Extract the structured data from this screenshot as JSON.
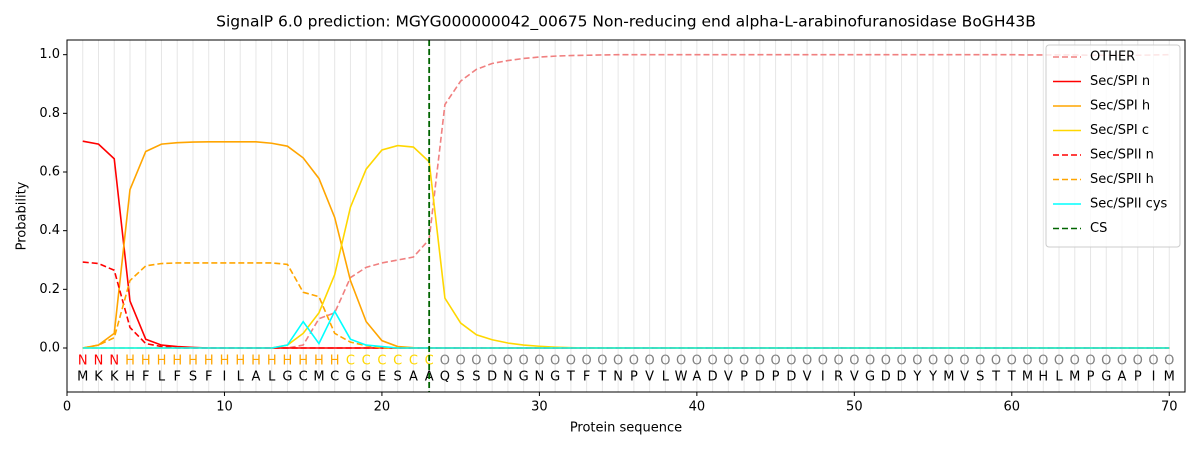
{
  "chart_data": {
    "type": "line",
    "title": "SignalP 6.0 prediction: MGYG000000042_00675 Non-reducing end alpha-L-arabinofuranosidase BoGH43B",
    "x_label": "Protein sequence",
    "y_label": "Probability",
    "xlim": [
      0,
      71
    ],
    "ylim": [
      -0.15,
      1.05
    ],
    "xticks": [
      0,
      10,
      20,
      30,
      40,
      50,
      60,
      70
    ],
    "yticks": [
      {
        "value": 0,
        "label": "0.0"
      },
      {
        "value": 0.2,
        "label": "0.2"
      },
      {
        "value": 0.4,
        "label": "0.4"
      },
      {
        "value": 0.6,
        "label": "0.6"
      },
      {
        "value": 0.8,
        "label": "0.8"
      },
      {
        "value": 1,
        "label": "1.0"
      }
    ],
    "grid": "x",
    "legend": "upper right",
    "x": [
      1,
      2,
      3,
      4,
      5,
      6,
      7,
      8,
      9,
      10,
      11,
      12,
      13,
      14,
      15,
      16,
      17,
      18,
      19,
      20,
      21,
      22,
      23,
      24,
      25,
      26,
      27,
      28,
      29,
      30,
      31,
      32,
      33,
      34,
      35,
      36,
      37,
      38,
      39,
      40,
      41,
      42,
      43,
      44,
      45,
      46,
      47,
      48,
      49,
      50,
      51,
      52,
      53,
      54,
      55,
      56,
      57,
      58,
      59,
      60,
      61,
      62,
      63,
      64,
      65,
      66,
      67,
      68,
      69,
      70
    ],
    "residues": [
      "M",
      "K",
      "K",
      "H",
      "F",
      "L",
      "F",
      "S",
      "F",
      "I",
      "L",
      "A",
      "L",
      "G",
      "C",
      "M",
      "C",
      "G",
      "G",
      "E",
      "S",
      "A",
      "A",
      "Q",
      "S",
      "S",
      "D",
      "N",
      "G",
      "N",
      "G",
      "T",
      "F",
      "T",
      "N",
      "P",
      "V",
      "L",
      "W",
      "A",
      "D",
      "V",
      "P",
      "D",
      "P",
      "D",
      "V",
      "I",
      "R",
      "V",
      "G",
      "D",
      "D",
      "Y",
      "Y",
      "M",
      "V",
      "S",
      "T",
      "T",
      "M",
      "H",
      "L",
      "M",
      "P",
      "G",
      "A",
      "P",
      "I",
      "M"
    ],
    "labels": [
      "N",
      "N",
      "N",
      "H",
      "H",
      "H",
      "H",
      "H",
      "H",
      "H",
      "H",
      "H",
      "H",
      "H",
      "H",
      "H",
      "H",
      "C",
      "C",
      "C",
      "C",
      "C",
      "C",
      "O",
      "O",
      "O",
      "O",
      "O",
      "O",
      "O",
      "O",
      "O",
      "O",
      "O",
      "O",
      "O",
      "O",
      "O",
      "O",
      "O",
      "O",
      "O",
      "O",
      "O",
      "O",
      "O",
      "O",
      "O",
      "O",
      "O",
      "O",
      "O",
      "O",
      "O",
      "O",
      "O",
      "O",
      "O",
      "O",
      "O",
      "O",
      "O",
      "O",
      "O",
      "O",
      "O",
      "O",
      "O",
      "O",
      "O"
    ],
    "label_colors": {
      "N": "#ff0000",
      "H": "#ffa500",
      "C": "#ffd700",
      "O": "#808080"
    },
    "series": [
      {
        "name": "OTHER",
        "color": "#f08080",
        "dashed": true,
        "values": [
          0,
          0,
          0,
          0,
          0,
          0,
          0,
          0,
          0,
          0,
          0,
          0,
          0,
          0,
          0.01,
          0.1,
          0.12,
          0.24,
          0.275,
          0.29,
          0.3,
          0.31,
          0.37,
          0.83,
          0.91,
          0.95,
          0.97,
          0.98,
          0.987,
          0.992,
          0.995,
          0.997,
          0.998,
          0.999,
          1,
          1,
          1,
          1,
          1,
          1,
          1,
          1,
          1,
          1,
          1,
          1,
          1,
          1,
          1,
          1,
          1,
          1,
          1,
          1,
          1,
          1,
          1,
          1,
          1,
          1,
          0.999,
          0.999,
          0.999,
          0.999,
          0.998,
          0.998,
          0.998,
          0.998,
          0.999,
          1
        ]
      },
      {
        "name": "Sec/SPI n",
        "color": "#ff0000",
        "dashed": false,
        "values": [
          0.705,
          0.695,
          0.645,
          0.16,
          0.03,
          0.01,
          0.005,
          0.002,
          0,
          0,
          0,
          0,
          0,
          0,
          0,
          0,
          0,
          0,
          0,
          0,
          0,
          0,
          0,
          0,
          0,
          0,
          0,
          0,
          0,
          0,
          0,
          0,
          0,
          0,
          0,
          0,
          0,
          0,
          0,
          0,
          0,
          0,
          0,
          0,
          0,
          0,
          0,
          0,
          0,
          0,
          0,
          0,
          0,
          0,
          0,
          0,
          0,
          0,
          0,
          0,
          0,
          0,
          0,
          0,
          0,
          0,
          0,
          0,
          0,
          0
        ]
      },
      {
        "name": "Sec/SPI h",
        "color": "#ffa500",
        "dashed": false,
        "values": [
          0,
          0.01,
          0.05,
          0.54,
          0.67,
          0.695,
          0.7,
          0.702,
          0.703,
          0.703,
          0.703,
          0.703,
          0.698,
          0.688,
          0.648,
          0.578,
          0.445,
          0.23,
          0.09,
          0.025,
          0.005,
          0.001,
          0,
          0,
          0,
          0,
          0,
          0,
          0,
          0,
          0,
          0,
          0,
          0,
          0,
          0,
          0,
          0,
          0,
          0,
          0,
          0,
          0,
          0,
          0,
          0,
          0,
          0,
          0,
          0,
          0,
          0,
          0,
          0,
          0,
          0,
          0,
          0,
          0,
          0,
          0,
          0,
          0,
          0,
          0,
          0,
          0,
          0,
          0,
          0
        ]
      },
      {
        "name": "Sec/SPI c",
        "color": "#ffd700",
        "dashed": false,
        "values": [
          0,
          0,
          0,
          0,
          0,
          0,
          0,
          0,
          0,
          0,
          0,
          0,
          0,
          0.01,
          0.05,
          0.12,
          0.25,
          0.48,
          0.61,
          0.675,
          0.69,
          0.685,
          0.635,
          0.17,
          0.085,
          0.045,
          0.028,
          0.017,
          0.01,
          0.006,
          0.003,
          0.001,
          0,
          0,
          0,
          0,
          0,
          0,
          0,
          0,
          0,
          0,
          0,
          0,
          0,
          0,
          0,
          0,
          0,
          0,
          0,
          0,
          0,
          0,
          0,
          0,
          0,
          0,
          0,
          0,
          0,
          0,
          0,
          0,
          0,
          0,
          0,
          0,
          0,
          0
        ]
      },
      {
        "name": "Sec/SPII n",
        "color": "#ff0000",
        "dashed": true,
        "values": [
          0.293,
          0.288,
          0.265,
          0.07,
          0.015,
          0.005,
          0,
          0,
          0,
          0,
          0,
          0,
          0,
          0,
          0,
          0,
          0,
          0,
          0,
          0,
          0,
          0,
          0,
          0,
          0,
          0,
          0,
          0,
          0,
          0,
          0,
          0,
          0,
          0,
          0,
          0,
          0,
          0,
          0,
          0,
          0,
          0,
          0,
          0,
          0,
          0,
          0,
          0,
          0,
          0,
          0,
          0,
          0,
          0,
          0,
          0,
          0,
          0,
          0,
          0,
          0,
          0,
          0,
          0,
          0,
          0,
          0,
          0,
          0,
          0
        ]
      },
      {
        "name": "Sec/SPII h",
        "color": "#ffa500",
        "dashed": true,
        "values": [
          0,
          0.01,
          0.035,
          0.23,
          0.28,
          0.288,
          0.29,
          0.29,
          0.29,
          0.29,
          0.29,
          0.29,
          0.29,
          0.285,
          0.19,
          0.175,
          0.05,
          0.02,
          0.008,
          0,
          0,
          0,
          0,
          0,
          0,
          0,
          0,
          0,
          0,
          0,
          0,
          0,
          0,
          0,
          0,
          0,
          0,
          0,
          0,
          0,
          0,
          0,
          0,
          0,
          0,
          0,
          0,
          0,
          0,
          0,
          0,
          0,
          0,
          0,
          0,
          0,
          0,
          0,
          0,
          0,
          0,
          0,
          0,
          0,
          0,
          0,
          0,
          0,
          0,
          0
        ]
      },
      {
        "name": "Sec/SPII cys",
        "color": "#00ffff",
        "dashed": false,
        "values": [
          0,
          0,
          0,
          0,
          0,
          0,
          0,
          0,
          0,
          0,
          0,
          0,
          0,
          0.01,
          0.09,
          0.015,
          0.125,
          0.03,
          0.01,
          0.005,
          0,
          0,
          0,
          0,
          0,
          0,
          0,
          0,
          0,
          0,
          0,
          0,
          0,
          0,
          0,
          0,
          0,
          0,
          0,
          0,
          0,
          0,
          0,
          0,
          0,
          0,
          0,
          0,
          0,
          0,
          0,
          0,
          0,
          0,
          0,
          0,
          0,
          0,
          0,
          0,
          0,
          0,
          0,
          0,
          0,
          0,
          0,
          0,
          0,
          0
        ]
      }
    ],
    "cs": {
      "name": "CS",
      "x": 23,
      "color": "#006400"
    }
  }
}
